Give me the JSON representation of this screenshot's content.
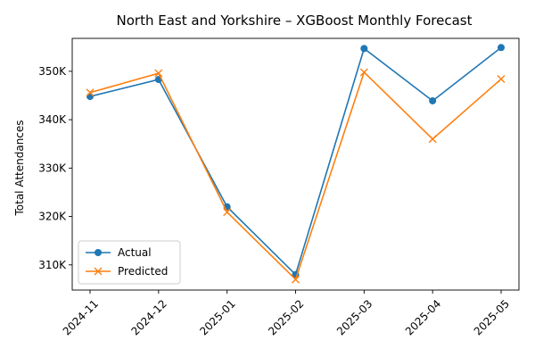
{
  "chart_data": {
    "type": "line",
    "title": "North East and Yorkshire – XGBoost Monthly Forecast",
    "xlabel": "",
    "ylabel": "Total Attendances",
    "categories": [
      "2024-11",
      "2024-12",
      "2025-01",
      "2025-02",
      "2025-03",
      "2025-04",
      "2025-05"
    ],
    "y_ticks": [
      310000,
      320000,
      330000,
      340000,
      350000
    ],
    "y_tick_labels": [
      "310K",
      "320K",
      "330K",
      "340K",
      "350K"
    ],
    "ylim": [
      304800,
      356800
    ],
    "grid": false,
    "legend_position": "lower-left",
    "series": [
      {
        "name": "Actual",
        "marker": "circle",
        "color": "#1f77b4",
        "values": [
          344800,
          348300,
          322000,
          308000,
          354700,
          343900,
          354900
        ]
      },
      {
        "name": "Predicted",
        "marker": "x",
        "color": "#ff7f0e",
        "values": [
          345600,
          349600,
          320900,
          307000,
          349800,
          336000,
          348400
        ]
      }
    ]
  }
}
